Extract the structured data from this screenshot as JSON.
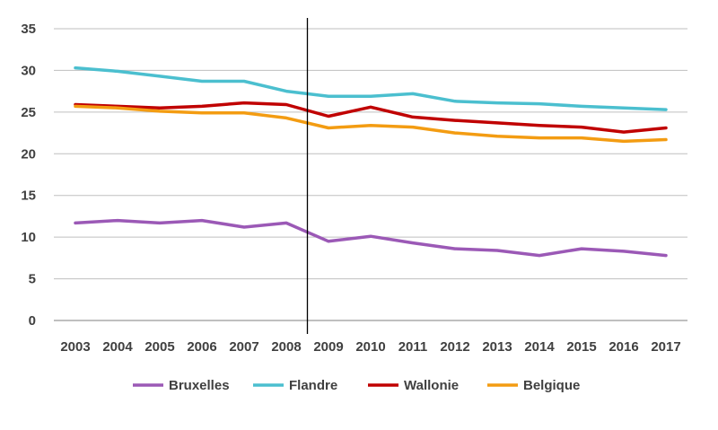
{
  "chart_data": {
    "type": "line",
    "title": "",
    "xlabel": "",
    "ylabel": "",
    "x": [
      "2003",
      "2004",
      "2005",
      "2006",
      "2007",
      "2008",
      "2009",
      "2010",
      "2011",
      "2012",
      "2013",
      "2014",
      "2015",
      "2016",
      "2017"
    ],
    "ylim": [
      0,
      35
    ],
    "yticks": [
      "0",
      "5",
      "10",
      "15",
      "20",
      "25",
      "30",
      "35"
    ],
    "grid": "horizontal",
    "legend": "bottom",
    "vertical_marker_after": "2008",
    "series": [
      {
        "name": "Bruxelles",
        "color": "#9b59b6",
        "values": [
          11.7,
          12.0,
          11.7,
          12.0,
          11.2,
          11.7,
          9.5,
          10.1,
          9.3,
          8.6,
          8.4,
          7.8,
          8.6,
          8.3,
          7.8
        ]
      },
      {
        "name": "Flandre",
        "color": "#4bbfcf",
        "values": [
          30.3,
          29.9,
          29.3,
          28.7,
          28.7,
          27.5,
          26.9,
          26.9,
          27.2,
          26.3,
          26.1,
          26.0,
          25.7,
          25.5,
          25.3
        ]
      },
      {
        "name": "Wallonie",
        "color": "#c00000",
        "values": [
          25.9,
          25.7,
          25.5,
          25.7,
          26.1,
          25.9,
          24.5,
          25.6,
          24.4,
          24.0,
          23.7,
          23.4,
          23.2,
          22.6,
          23.1
        ]
      },
      {
        "name": "Belgique",
        "color": "#f39c12",
        "values": [
          25.7,
          25.5,
          25.1,
          24.9,
          24.9,
          24.3,
          23.1,
          23.4,
          23.2,
          22.5,
          22.1,
          21.9,
          21.9,
          21.5,
          21.7
        ]
      }
    ]
  }
}
